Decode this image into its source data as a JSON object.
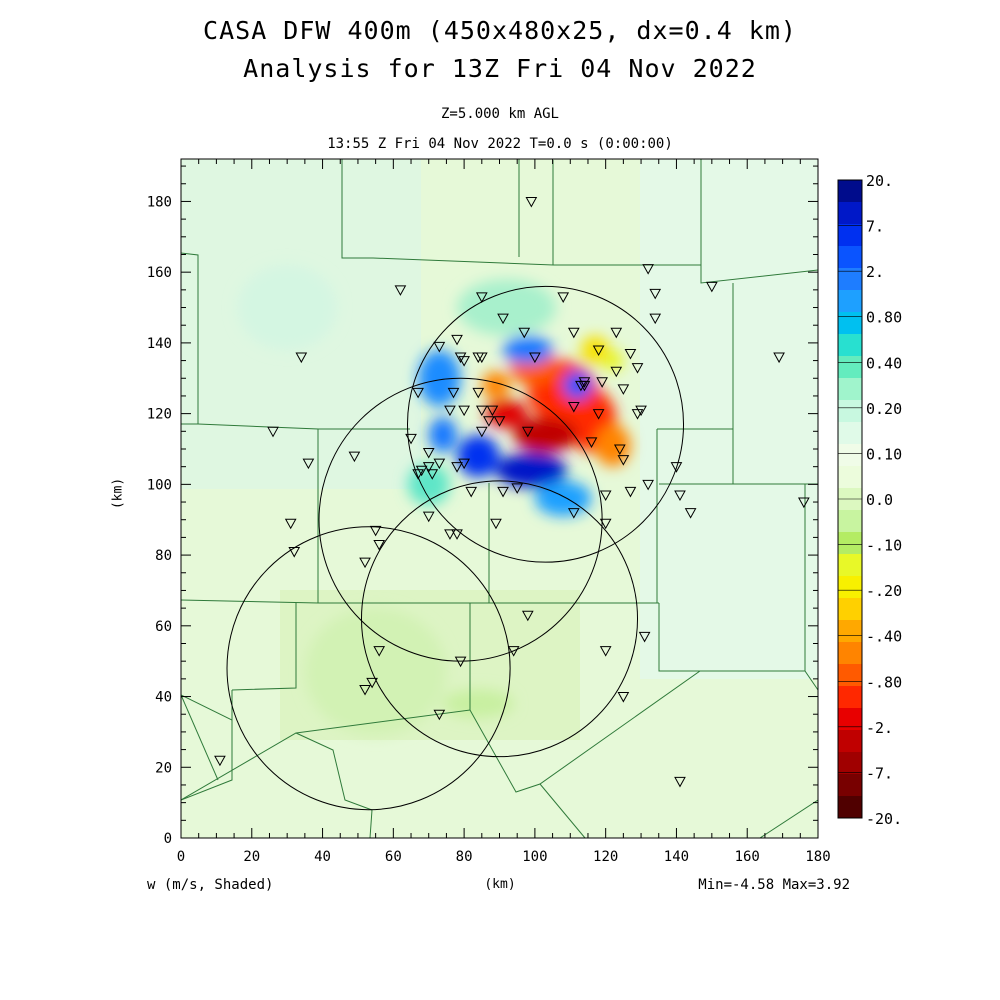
{
  "title": {
    "line1": "CASA DFW 400m (450x480x25, dx=0.4 km)",
    "line2": "Analysis for 13Z Fri 04 Nov 2022"
  },
  "subtitle": {
    "level": "Z=5.000 km AGL",
    "time": "13:55 Z Fri 04 Nov 2022   T=0.0 s (0:00:00)"
  },
  "axes": {
    "x_unit": "(km)",
    "y_unit": "(km)",
    "x_ticks": [
      "0",
      "20",
      "40",
      "60",
      "80",
      "100",
      "120",
      "140",
      "160",
      "180"
    ],
    "y_ticks": [
      "0",
      "20",
      "40",
      "60",
      "80",
      "100",
      "120",
      "140",
      "160",
      "180"
    ],
    "x_range": [
      0,
      180
    ],
    "y_range": [
      0,
      192
    ]
  },
  "variable_label": "w (m/s, Shaded)",
  "minmax": "Min=-4.58 Max=3.92",
  "colorbar": {
    "labels": [
      "20.",
      "7.",
      "2.",
      "0.80",
      "0.40",
      "0.20",
      "0.10",
      "0.0",
      "-.10",
      "-.20",
      "-.40",
      "-.80",
      "-2.",
      "-7.",
      "-20."
    ],
    "colors": [
      "#000c8c",
      "#0018c8",
      "#0030f0",
      "#0a54ff",
      "#1e7dff",
      "#1ea0ff",
      "#00c0f0",
      "#28e0d0",
      "#64ecbe",
      "#a0f4cc",
      "#c8f8e0",
      "#e0fae8",
      "#f0fce8",
      "#ecfcdc",
      "#dcf8c0",
      "#c8f4a0",
      "#b4ec64",
      "#e8f828",
      "#f8f000",
      "#ffd000",
      "#ffa800",
      "#ff8400",
      "#ff5a00",
      "#ff2800",
      "#e80000",
      "#c00000",
      "#a00000",
      "#780000",
      "#500000"
    ]
  },
  "radars": [
    {
      "x": 103,
      "y": 117,
      "r": 39
    },
    {
      "x": 79,
      "y": 90,
      "r": 40
    },
    {
      "x": 90,
      "y": 62,
      "r": 39
    },
    {
      "x": 53,
      "y": 48,
      "r": 40
    }
  ],
  "stations": [
    [
      99,
      180
    ],
    [
      62,
      155
    ],
    [
      85,
      153
    ],
    [
      108,
      153
    ],
    [
      132,
      161
    ],
    [
      134,
      154
    ],
    [
      150,
      156
    ],
    [
      134,
      147
    ],
    [
      91,
      147
    ],
    [
      111,
      143
    ],
    [
      123,
      143
    ],
    [
      97,
      143
    ],
    [
      78,
      141
    ],
    [
      73,
      139
    ],
    [
      118,
      138
    ],
    [
      127,
      137
    ],
    [
      129,
      133
    ],
    [
      123,
      132
    ],
    [
      119,
      129
    ],
    [
      114,
      129
    ],
    [
      114,
      128
    ],
    [
      113,
      128
    ],
    [
      100,
      136
    ],
    [
      84,
      136
    ],
    [
      85,
      136
    ],
    [
      79,
      136
    ],
    [
      80,
      135
    ],
    [
      34,
      136
    ],
    [
      169,
      136
    ],
    [
      125,
      127
    ],
    [
      77,
      126
    ],
    [
      84,
      126
    ],
    [
      67,
      126
    ],
    [
      76,
      121
    ],
    [
      80,
      121
    ],
    [
      85,
      121
    ],
    [
      88,
      121
    ],
    [
      111,
      122
    ],
    [
      118,
      120
    ],
    [
      130,
      121
    ],
    [
      129,
      120
    ],
    [
      87,
      118
    ],
    [
      90,
      118
    ],
    [
      85,
      115
    ],
    [
      116,
      112
    ],
    [
      98,
      115
    ],
    [
      65,
      113
    ],
    [
      26,
      115
    ],
    [
      70,
      109
    ],
    [
      124,
      110
    ],
    [
      125,
      107
    ],
    [
      49,
      108
    ],
    [
      36,
      106
    ],
    [
      70,
      105
    ],
    [
      73,
      106
    ],
    [
      68,
      104
    ],
    [
      67,
      103
    ],
    [
      78,
      105
    ],
    [
      80,
      106
    ],
    [
      71,
      103
    ],
    [
      140,
      105
    ],
    [
      132,
      100
    ],
    [
      127,
      98
    ],
    [
      141,
      97
    ],
    [
      95,
      99
    ],
    [
      82,
      98
    ],
    [
      91,
      98
    ],
    [
      120,
      97
    ],
    [
      120,
      89
    ],
    [
      144,
      92
    ],
    [
      89,
      89
    ],
    [
      111,
      92
    ],
    [
      70,
      91
    ],
    [
      31,
      89
    ],
    [
      176,
      95
    ],
    [
      78,
      86
    ],
    [
      76,
      86
    ],
    [
      55,
      87
    ],
    [
      56,
      83
    ],
    [
      32,
      81
    ],
    [
      52,
      78
    ],
    [
      98,
      63
    ],
    [
      131,
      57
    ],
    [
      120,
      53
    ],
    [
      94,
      53
    ],
    [
      56,
      53
    ],
    [
      79,
      50
    ],
    [
      54,
      44
    ],
    [
      52,
      42
    ],
    [
      125,
      40
    ],
    [
      73,
      35
    ],
    [
      141,
      16
    ],
    [
      11,
      22
    ]
  ],
  "cells": [
    {
      "x": 108,
      "y": 126,
      "rx": 10,
      "ry": 9,
      "v": -2.0
    },
    {
      "x": 116,
      "y": 118,
      "rx": 7,
      "ry": 9,
      "v": -2.0
    },
    {
      "x": 103,
      "y": 114,
      "rx": 9,
      "ry": 5,
      "v": -3.5
    },
    {
      "x": 92,
      "y": 120,
      "rx": 6,
      "ry": 4,
      "v": -2.5
    },
    {
      "x": 89,
      "y": 128,
      "rx": 4,
      "ry": 4,
      "v": -0.9
    },
    {
      "x": 122,
      "y": 111,
      "rx": 5,
      "ry": 6,
      "v": -0.9
    },
    {
      "x": 100,
      "y": 133,
      "rx": 7,
      "ry": 5,
      "v": -1.2
    },
    {
      "x": 117,
      "y": 138,
      "rx": 4,
      "ry": 4,
      "v": -0.25
    },
    {
      "x": 122,
      "y": 135,
      "rx": 3,
      "ry": 3,
      "v": -0.2
    },
    {
      "x": 99,
      "y": 104,
      "rx": 10,
      "ry": 5,
      "v": 2.5
    },
    {
      "x": 84,
      "y": 108,
      "rx": 6,
      "ry": 6,
      "v": 1.8
    },
    {
      "x": 74,
      "y": 114,
      "rx": 4,
      "ry": 5,
      "v": 0.7
    },
    {
      "x": 73,
      "y": 130,
      "rx": 6,
      "ry": 8,
      "v": 0.5
    },
    {
      "x": 98,
      "y": 138,
      "rx": 7,
      "ry": 4,
      "v": 0.7
    },
    {
      "x": 112,
      "y": 128,
      "rx": 4,
      "ry": 4,
      "v": 1.0
    },
    {
      "x": 92,
      "y": 150,
      "rx": 14,
      "ry": 8,
      "v": 0.15
    },
    {
      "x": 108,
      "y": 96,
      "rx": 8,
      "ry": 5,
      "v": 0.4
    },
    {
      "x": 70,
      "y": 100,
      "rx": 6,
      "ry": 6,
      "v": 0.25
    },
    {
      "x": 84,
      "y": 38,
      "rx": 10,
      "ry": 4,
      "v": -0.12
    },
    {
      "x": 55,
      "y": 47,
      "rx": 20,
      "ry": 18,
      "v": -0.08
    },
    {
      "x": 30,
      "y": 150,
      "rx": 14,
      "ry": 12,
      "v": 0.08
    }
  ]
}
